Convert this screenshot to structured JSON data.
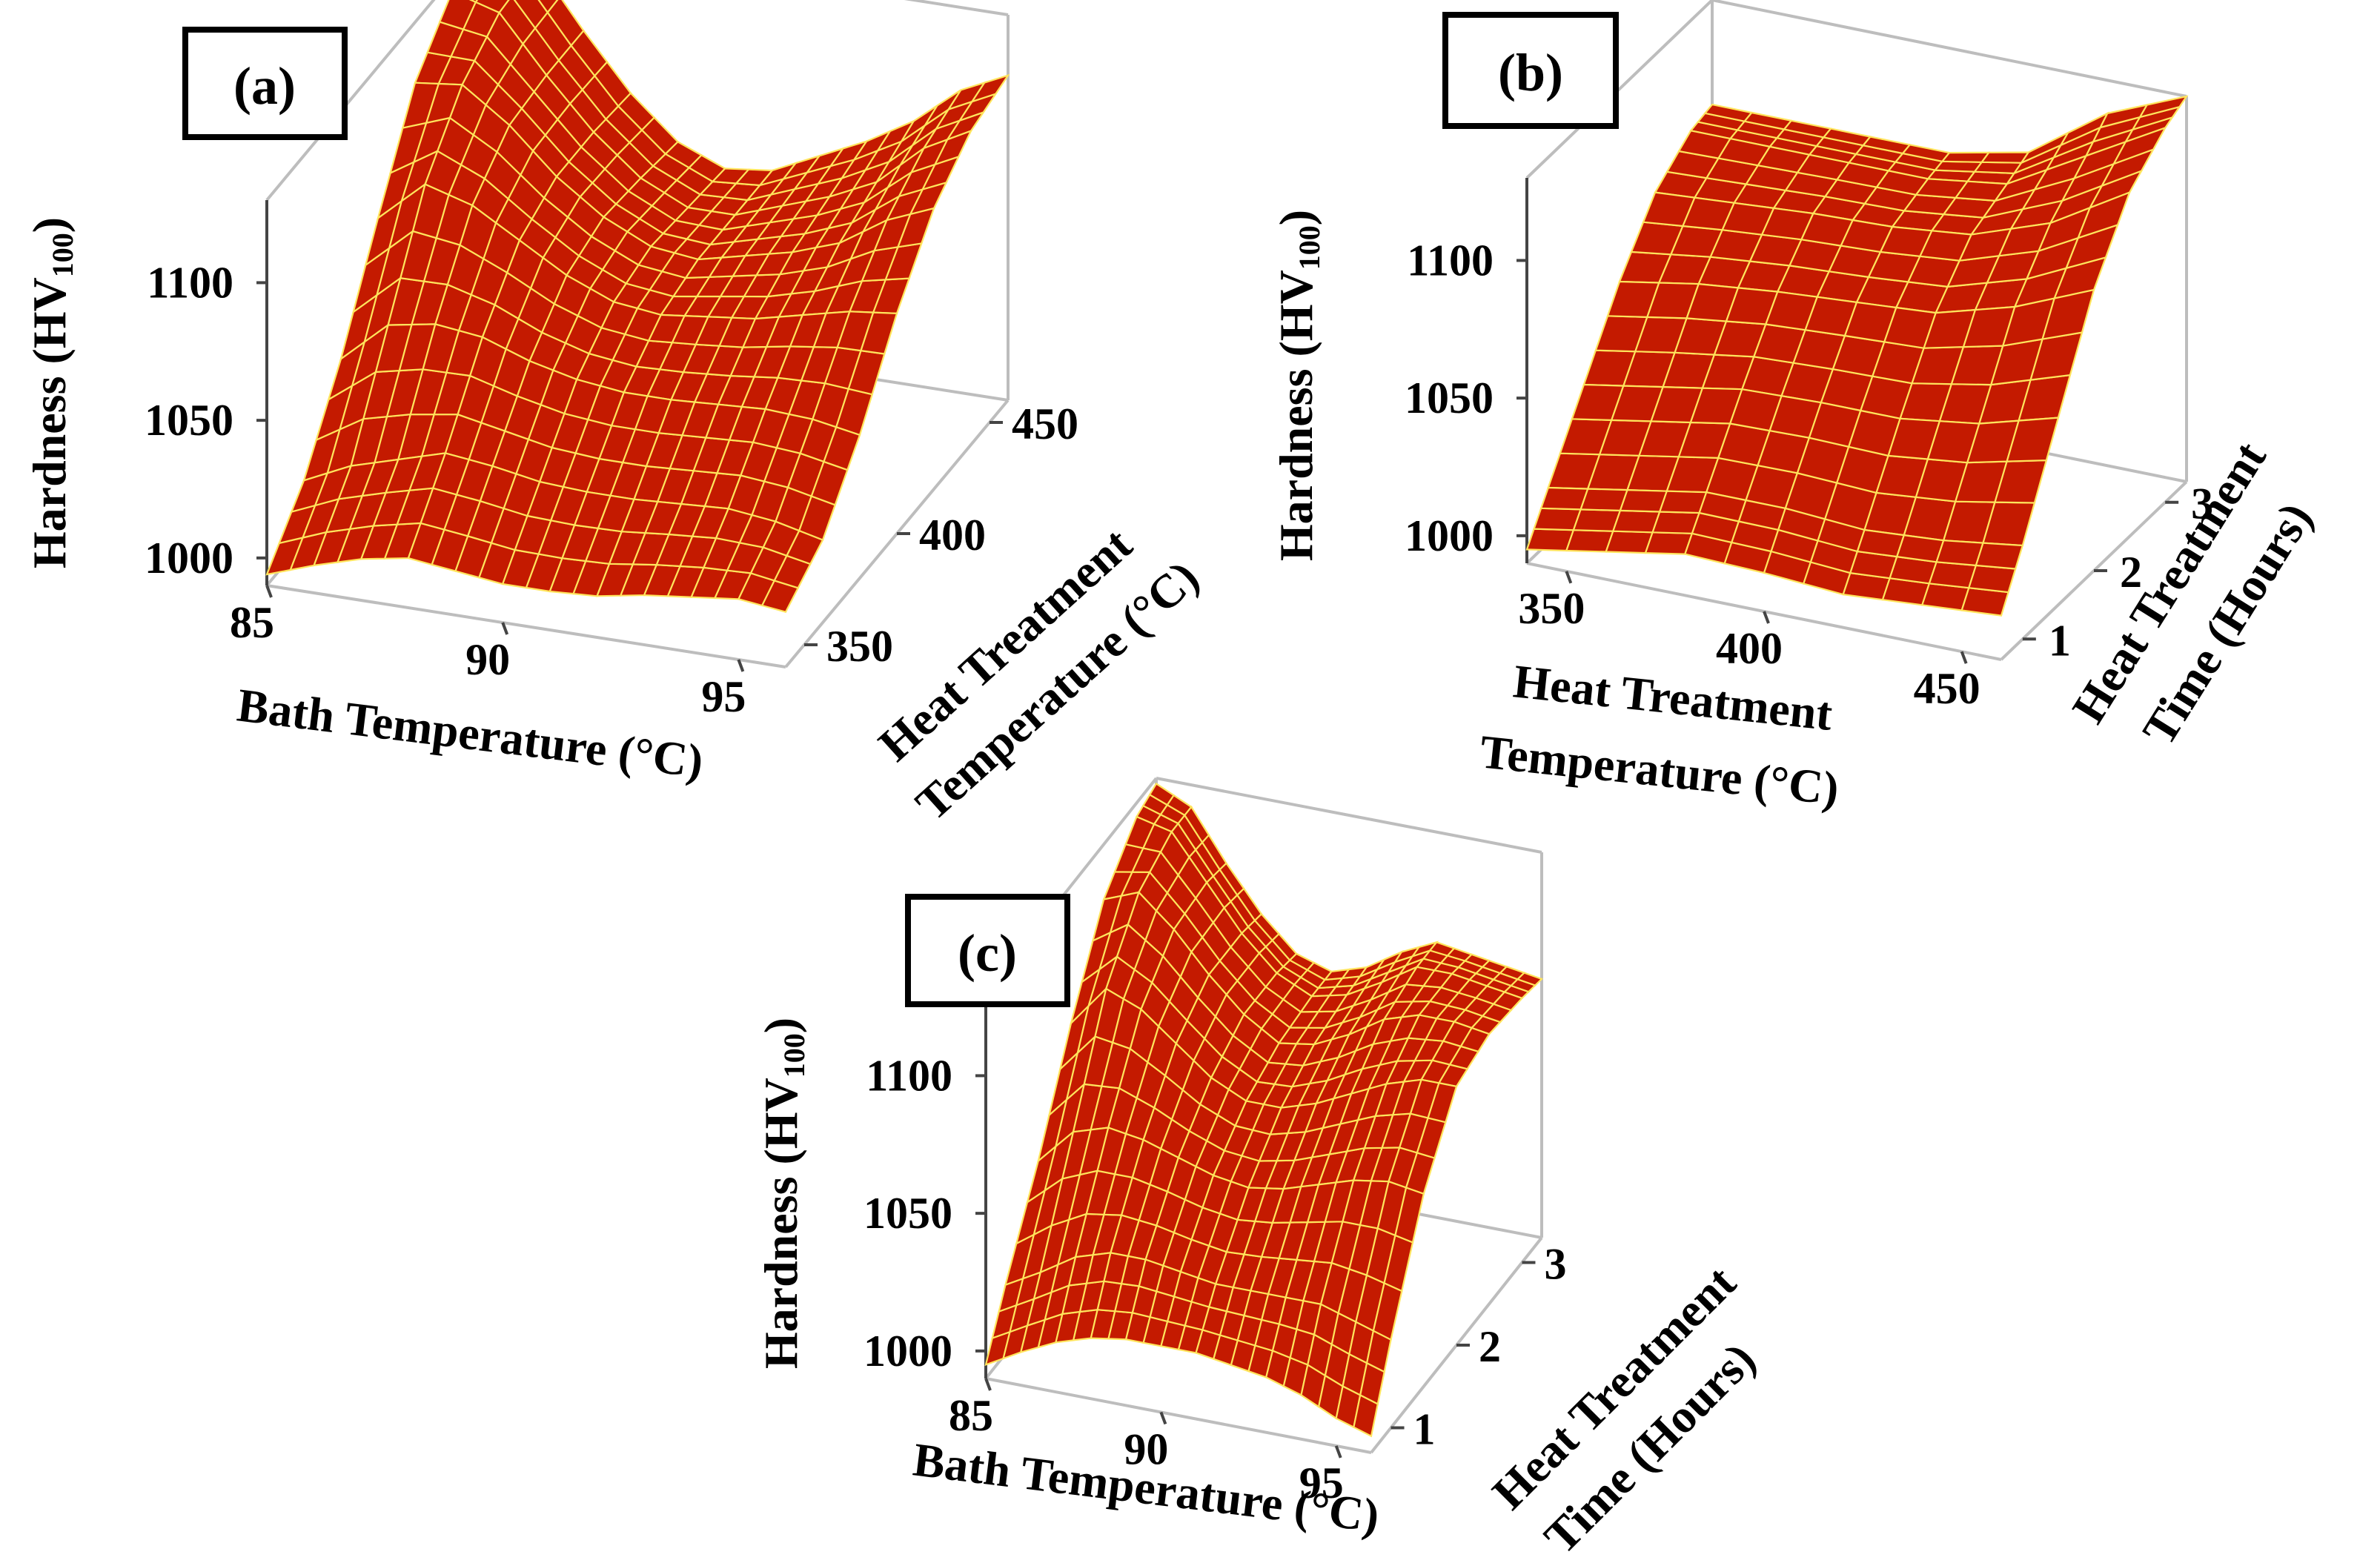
{
  "colors": {
    "surface": "#c41a00",
    "mesh": "#ffe45c",
    "box": "#bdbdbd",
    "text": "#000000"
  },
  "chart_data": [
    {
      "type": "surface",
      "panel_label": "(a)",
      "zlabel_main": "Hardness (HV",
      "zlabel_sub": "100",
      "zlabel_close": ")",
      "xlabel": "Bath Temperature (°C)",
      "ylabel_line1": "Heat Treatment",
      "ylabel_line2": "Temperature (°C)",
      "x_ticks": [
        "85",
        "90",
        "95"
      ],
      "y_ticks": [
        "350",
        "400",
        "450"
      ],
      "z_ticks": [
        "1000",
        "1050",
        "1100"
      ],
      "xlim": [
        85,
        96
      ],
      "ylim": [
        340,
        460
      ],
      "zlim": [
        990,
        1130
      ],
      "grid_x": [
        85,
        86,
        87,
        88,
        89,
        90,
        91,
        92,
        93,
        94,
        95,
        96
      ],
      "grid_y": [
        340,
        360,
        380,
        400,
        420,
        440,
        460
      ],
      "z": [
        [
          994,
          1012,
          1040,
          1075,
          1108,
          1125,
          1130
        ],
        [
          1000,
          1020,
          1055,
          1090,
          1110,
          1120,
          1122
        ],
        [
          1005,
          1025,
          1058,
          1085,
          1098,
          1100,
          1100
        ],
        [
          1008,
          1030,
          1056,
          1075,
          1082,
          1082,
          1080
        ],
        [
          1006,
          1028,
          1050,
          1065,
          1070,
          1068,
          1065
        ],
        [
          1004,
          1025,
          1046,
          1058,
          1062,
          1060,
          1058
        ],
        [
          1004,
          1024,
          1044,
          1056,
          1060,
          1060,
          1060
        ],
        [
          1005,
          1024,
          1044,
          1058,
          1064,
          1066,
          1068
        ],
        [
          1008,
          1025,
          1045,
          1060,
          1068,
          1072,
          1076
        ],
        [
          1010,
          1026,
          1046,
          1064,
          1074,
          1080,
          1086
        ],
        [
          1012,
          1024,
          1045,
          1068,
          1085,
          1095,
          1100
        ],
        [
          1010,
          1020,
          1042,
          1070,
          1092,
          1104,
          1108
        ]
      ]
    },
    {
      "type": "surface",
      "panel_label": "(b)",
      "zlabel_main": "Hardness (HV",
      "zlabel_sub": "100",
      "zlabel_close": ")",
      "xlabel_line1": "Heat Treatment",
      "xlabel_line2": "Temperature (°C)",
      "ylabel_line1": "Heat Treatment",
      "ylabel_line2": "Time (Hours)",
      "x_ticks": [
        "350",
        "400",
        "450"
      ],
      "y_ticks": [
        "1",
        "2",
        "3"
      ],
      "z_ticks": [
        "1000",
        "1050",
        "1100"
      ],
      "xlim": [
        340,
        460
      ],
      "ylim": [
        0.7,
        3.3
      ],
      "zlim": [
        990,
        1130
      ],
      "grid_x": [
        340,
        360,
        380,
        400,
        420,
        440,
        460
      ],
      "grid_y": [
        0.7,
        1.0,
        1.5,
        2.0,
        2.5,
        3.0,
        3.3
      ],
      "z": [
        [
          995,
          1010,
          1035,
          1060,
          1080,
          1090,
          1092
        ],
        [
          1000,
          1015,
          1040,
          1065,
          1082,
          1090,
          1092
        ],
        [
          1005,
          1020,
          1045,
          1068,
          1084,
          1090,
          1092
        ],
        [
          1004,
          1020,
          1046,
          1070,
          1085,
          1090,
          1092
        ],
        [
          1002,
          1018,
          1046,
          1072,
          1088,
          1094,
          1098
        ],
        [
          1004,
          1020,
          1050,
          1080,
          1098,
          1110,
          1118
        ],
        [
          1006,
          1024,
          1058,
          1092,
          1115,
          1126,
          1130
        ]
      ]
    },
    {
      "type": "surface",
      "panel_label": "(c)",
      "zlabel_main": "Hardness (HV",
      "zlabel_sub": "100",
      "zlabel_close": ")",
      "xlabel": "Bath Temperature (°C)",
      "ylabel_line1": "Heat Treatment",
      "ylabel_line2": "Time (Hours)",
      "x_ticks": [
        "85",
        "90",
        "95"
      ],
      "y_ticks": [
        "1",
        "2",
        "3"
      ],
      "z_ticks": [
        "1000",
        "1050",
        "1100"
      ],
      "xlim": [
        85,
        96
      ],
      "ylim": [
        0.7,
        3.3
      ],
      "zlim": [
        990,
        1130
      ],
      "grid_x": [
        85,
        86,
        87,
        88,
        89,
        90,
        91,
        92,
        93,
        94,
        95,
        96
      ],
      "grid_y": [
        0.7,
        1.0,
        1.5,
        2.0,
        2.5,
        3.0,
        3.3
      ],
      "z": [
        [
          995,
          1015,
          1045,
          1080,
          1110,
          1125,
          1128
        ],
        [
          1002,
          1022,
          1058,
          1095,
          1115,
          1122,
          1122
        ],
        [
          1008,
          1030,
          1062,
          1090,
          1104,
          1106,
          1104
        ],
        [
          1012,
          1034,
          1060,
          1080,
          1090,
          1090,
          1088
        ],
        [
          1014,
          1034,
          1056,
          1070,
          1078,
          1078,
          1076
        ],
        [
          1014,
          1032,
          1052,
          1064,
          1070,
          1072,
          1072
        ],
        [
          1014,
          1030,
          1050,
          1064,
          1072,
          1075,
          1076
        ],
        [
          1012,
          1030,
          1052,
          1068,
          1078,
          1082,
          1084
        ],
        [
          1010,
          1030,
          1056,
          1074,
          1086,
          1090,
          1090
        ],
        [
          1006,
          1030,
          1060,
          1080,
          1090,
          1090,
          1088
        ],
        [
          1000,
          1026,
          1062,
          1084,
          1090,
          1088,
          1086
        ],
        [
          996,
          1022,
          1060,
          1084,
          1088,
          1086,
          1084
        ]
      ]
    }
  ]
}
